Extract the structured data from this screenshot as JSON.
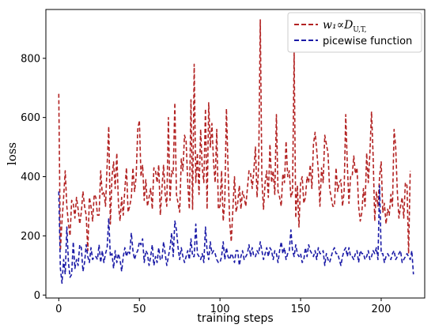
{
  "chart_data": {
    "type": "line",
    "title": "",
    "xlabel": "training steps",
    "ylabel": "loss",
    "xlim": [
      -8,
      227
    ],
    "ylim": [
      -10,
      965
    ],
    "xticks": [
      0,
      50,
      100,
      150,
      200
    ],
    "yticks": [
      0,
      200,
      400,
      600,
      800
    ],
    "grid": false,
    "legend_position": "top-right",
    "series": [
      {
        "name": "w₁∝D",
        "name_subscript": "U,T,",
        "color": "#b22222",
        "dash": "dashed",
        "x_start": 0,
        "x_step": 1,
        "values": [
          680,
          150,
          250,
          330,
          420,
          300,
          240,
          200,
          320,
          310,
          260,
          330,
          290,
          240,
          280,
          350,
          300,
          270,
          150,
          330,
          300,
          250,
          340,
          330,
          270,
          270,
          420,
          340,
          350,
          300,
          440,
          570,
          240,
          400,
          450,
          360,
          480,
          310,
          250,
          330,
          270,
          360,
          430,
          280,
          300,
          330,
          430,
          350,
          400,
          560,
          590,
          400,
          440,
          320,
          390,
          300,
          330,
          360,
          290,
          430,
          420,
          380,
          440,
          270,
          360,
          440,
          340,
          300,
          600,
          320,
          420,
          410,
          650,
          340,
          310,
          280,
          460,
          420,
          540,
          520,
          380,
          290,
          660,
          290,
          780,
          380,
          480,
          340,
          560,
          430,
          380,
          630,
          290,
          650,
          500,
          580,
          450,
          380,
          560,
          290,
          300,
          420,
          250,
          320,
          630,
          430,
          250,
          180,
          290,
          400,
          280,
          310,
          370,
          290,
          350,
          330,
          300,
          360,
          420,
          410,
          360,
          420,
          500,
          330,
          440,
          930,
          390,
          290,
          380,
          420,
          330,
          510,
          380,
          420,
          340,
          610,
          350,
          330,
          300,
          410,
          380,
          520,
          400,
          420,
          330,
          350,
          820,
          260,
          370,
          230,
          380,
          400,
          310,
          330,
          400,
          380,
          440,
          360,
          510,
          550,
          490,
          420,
          300,
          430,
          380,
          540,
          510,
          480,
          360,
          330,
          300,
          300,
          430,
          350,
          380,
          390,
          300,
          350,
          610,
          440,
          310,
          400,
          400,
          470,
          410,
          430,
          300,
          250,
          280,
          360,
          300,
          480,
          380,
          480,
          620,
          470,
          250,
          350,
          300,
          400,
          450,
          280,
          310,
          240,
          290,
          270,
          340,
          300,
          560,
          500,
          350,
          260,
          300,
          330,
          260,
          380,
          370,
          140,
          420
        ]
      },
      {
        "name": "picewise function",
        "color": "#1a1aa6",
        "dash": "dashed",
        "x_start": 0,
        "x_step": 1,
        "values": [
          350,
          90,
          40,
          120,
          70,
          230,
          110,
          60,
          70,
          180,
          90,
          120,
          100,
          170,
          160,
          80,
          110,
          170,
          130,
          110,
          160,
          120,
          130,
          130,
          120,
          170,
          110,
          150,
          110,
          140,
          160,
          260,
          130,
          140,
          90,
          150,
          110,
          140,
          120,
          80,
          130,
          160,
          130,
          150,
          140,
          210,
          150,
          120,
          140,
          150,
          180,
          170,
          190,
          110,
          150,
          140,
          100,
          130,
          170,
          100,
          130,
          110,
          160,
          120,
          120,
          180,
          140,
          100,
          130,
          160,
          210,
          130,
          250,
          220,
          160,
          120,
          160,
          130,
          110,
          130,
          150,
          120,
          190,
          130,
          130,
          240,
          140,
          130,
          120,
          140,
          110,
          230,
          150,
          120,
          180,
          140,
          150,
          140,
          120,
          110,
          110,
          130,
          180,
          120,
          160,
          130,
          120,
          140,
          130,
          110,
          150,
          150,
          100,
          130,
          150,
          120,
          130,
          140,
          170,
          130,
          160,
          130,
          130,
          150,
          140,
          180,
          150,
          120,
          140,
          160,
          130,
          160,
          150,
          120,
          150,
          140,
          110,
          150,
          180,
          140,
          160,
          120,
          140,
          150,
          220,
          150,
          130,
          170,
          140,
          130,
          140,
          110,
          120,
          160,
          130,
          170,
          150,
          140,
          130,
          150,
          120,
          160,
          140,
          140,
          150,
          100,
          140,
          120,
          110,
          130,
          150,
          160,
          140,
          140,
          120,
          100,
          130,
          150,
          160,
          130,
          160,
          130,
          130,
          120,
          140,
          150,
          110,
          150,
          140,
          140,
          120,
          130,
          150,
          120,
          130,
          150,
          140,
          160,
          120,
          370,
          140,
          140,
          110,
          130,
          140,
          130,
          120,
          140,
          150,
          120,
          130,
          140,
          150,
          110,
          120,
          130,
          140,
          130,
          120,
          150,
          70
        ]
      }
    ]
  }
}
